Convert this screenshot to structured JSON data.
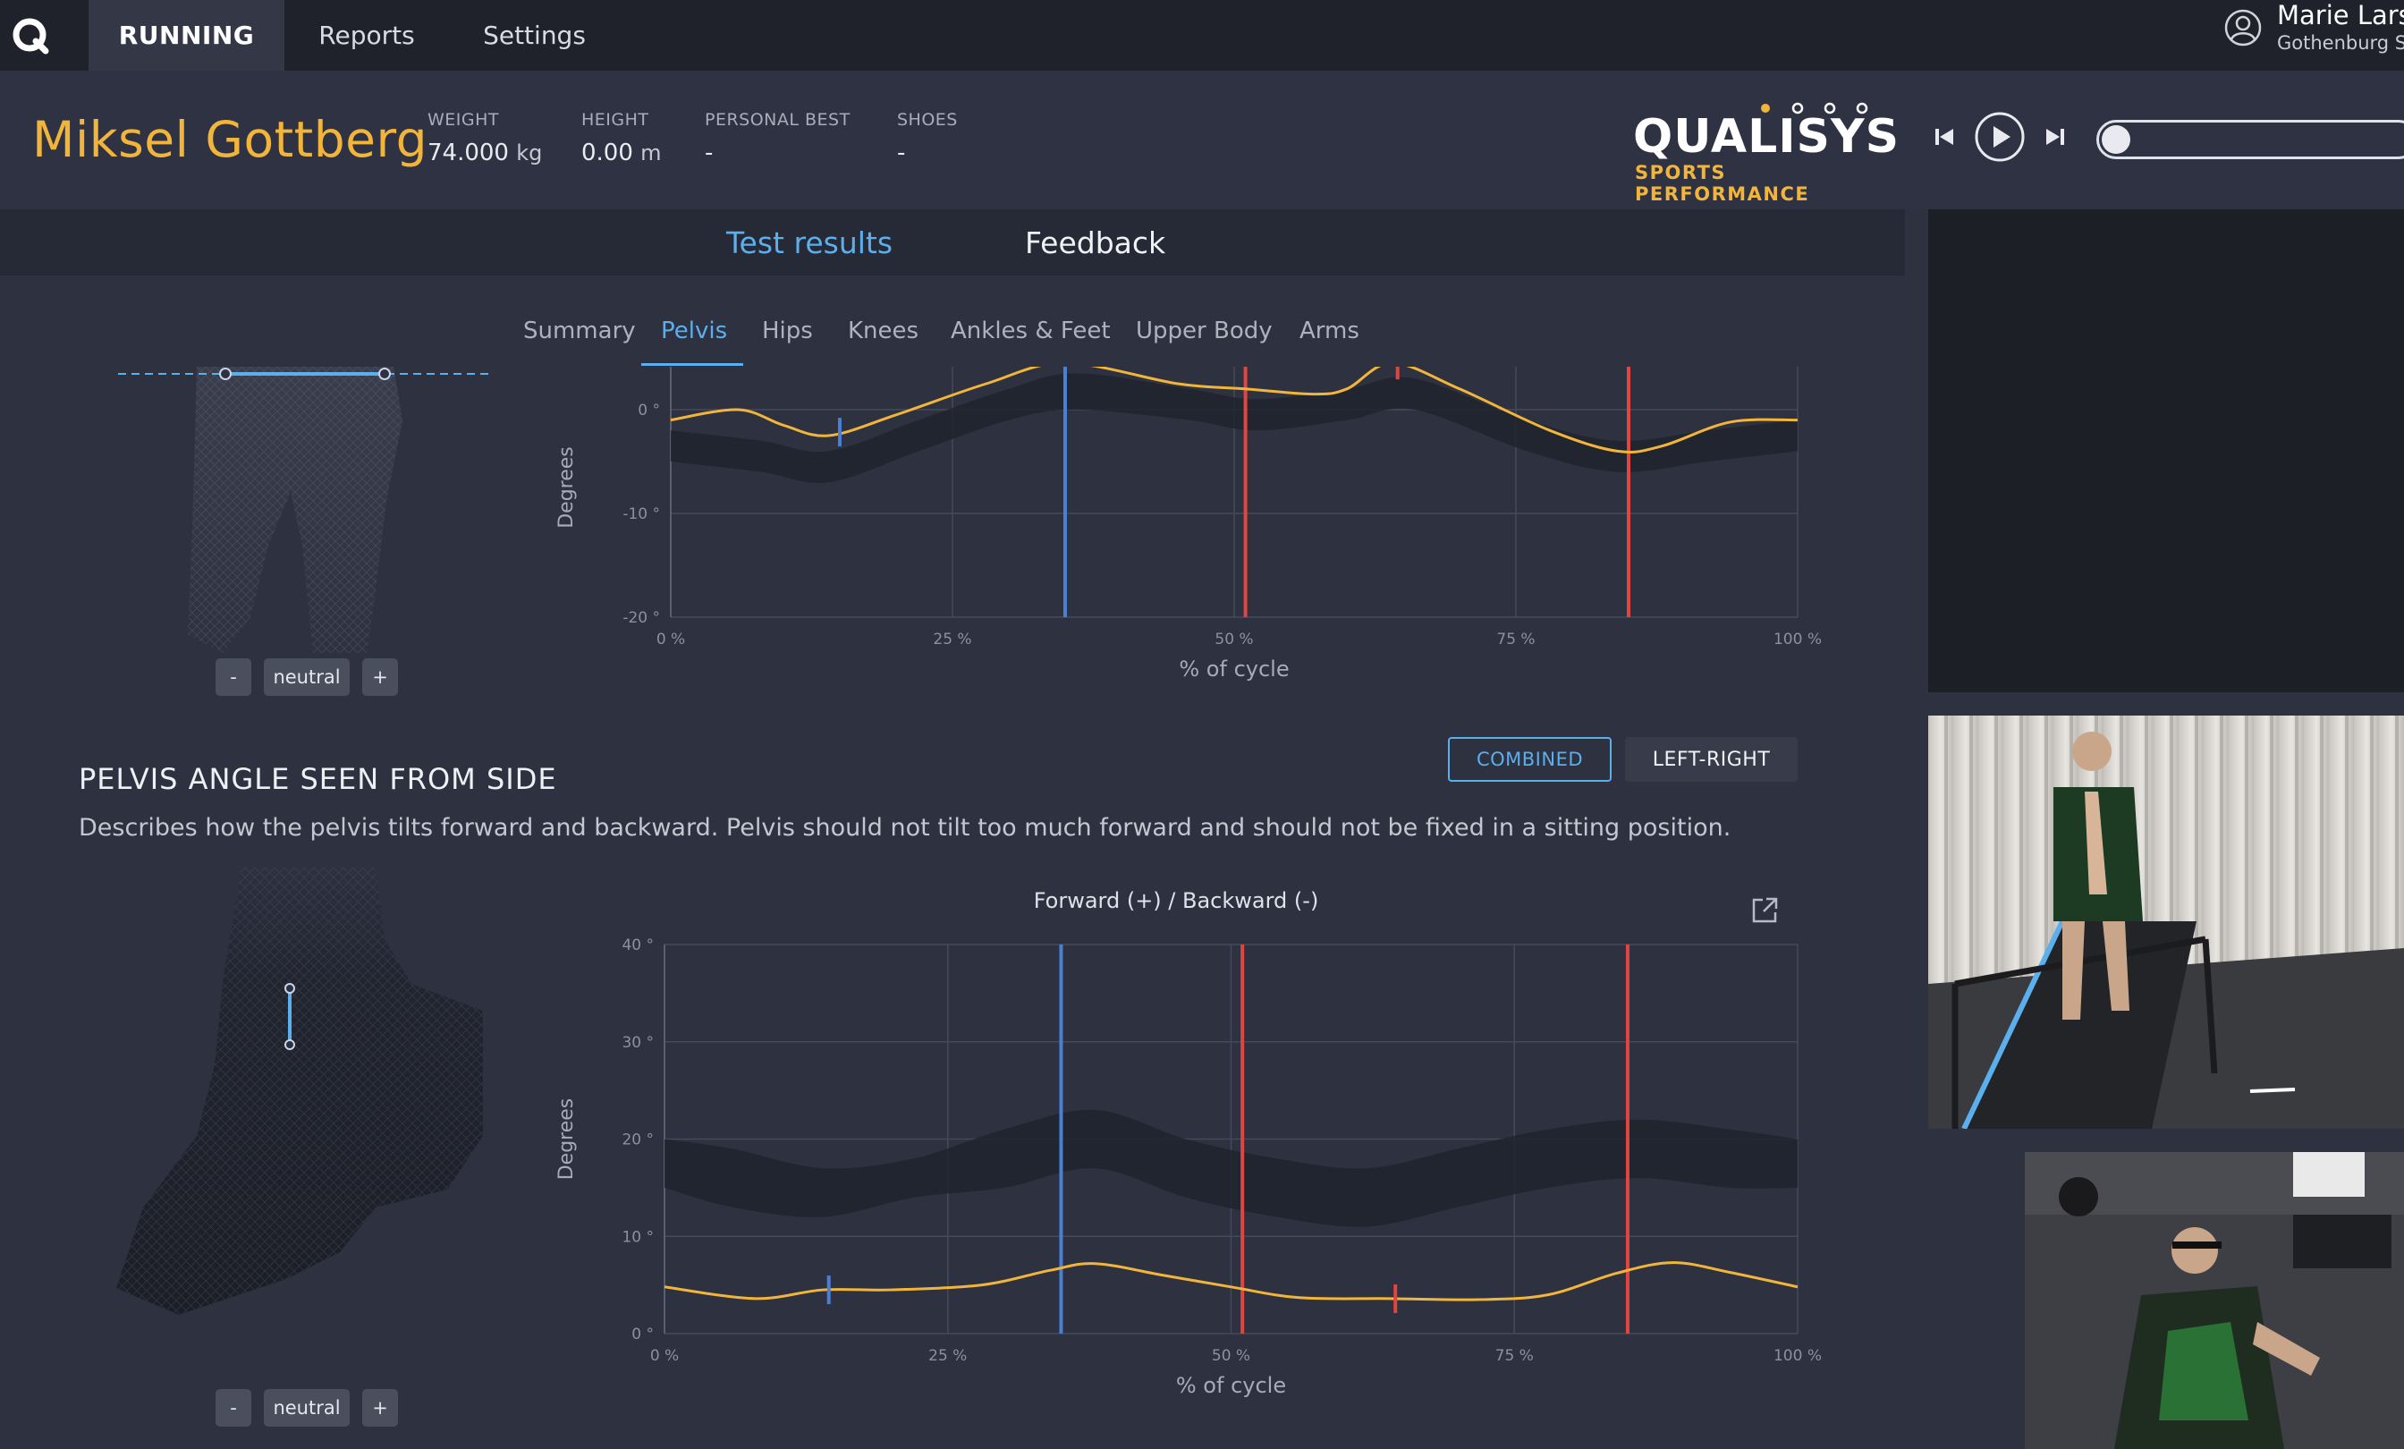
{
  "nav": {
    "logo": "Q",
    "tabs": [
      {
        "label": "RUNNING",
        "active": true
      },
      {
        "label": "Reports"
      },
      {
        "label": "Settings"
      }
    ],
    "user": {
      "name": "Marie Larss",
      "org": "Gothenburg Sp",
      "icon": "user-icon"
    }
  },
  "athlete": {
    "name": "Miksel Gottberg",
    "stats": [
      {
        "label": "WEIGHT",
        "value": "74.000",
        "unit": "kg"
      },
      {
        "label": "HEIGHT",
        "value": "0.00",
        "unit": "m"
      },
      {
        "label": "PERSONAL BEST",
        "value": "-",
        "unit": ""
      },
      {
        "label": "SHOES",
        "value": "-",
        "unit": ""
      }
    ]
  },
  "brand": {
    "word": "QUALISYS",
    "tagline": "SPORTS PERFORMANCE",
    "accent": "#f2b53b"
  },
  "player": {
    "prev_icon": "skip-back-icon",
    "play_icon": "play-icon",
    "next_icon": "skip-forward-icon"
  },
  "main_tabs": [
    {
      "label": "Test results",
      "active": true
    },
    {
      "label": "Feedback"
    }
  ],
  "sub_tabs": [
    {
      "label": "Summary"
    },
    {
      "label": "Pelvis",
      "active": true
    },
    {
      "label": "Hips"
    },
    {
      "label": "Knees"
    },
    {
      "label": "Ankles & Feet"
    },
    {
      "label": "Upper Body"
    },
    {
      "label": "Arms"
    }
  ],
  "model_controls": {
    "minus": "-",
    "neutral": "neutral",
    "plus": "+"
  },
  "section": {
    "title": "PELVIS ANGLE SEEN FROM SIDE",
    "description": "Describes how the pelvis tilts forward and backward. Pelvis should not tilt too much forward and should not be fixed in a sitting position.",
    "toggle": {
      "combined": "COMBINED",
      "left_right": "LEFT-RIGHT",
      "selected": "COMBINED"
    },
    "chart_title": "Forward (+) / Backward (-)"
  },
  "chart_data": [
    {
      "type": "line",
      "title": "",
      "xlabel": "% of cycle",
      "ylabel": "Degrees",
      "xlim": [
        0,
        100
      ],
      "ylim": [
        -20,
        5
      ],
      "xticks": [
        "0 %",
        "25 %",
        "50 %",
        "75 %",
        "100 %"
      ],
      "yticks": [
        {
          "v": 0,
          "label": "0 °"
        },
        {
          "v": -10,
          "label": "-10 °"
        },
        {
          "v": -20,
          "label": "-20 °"
        }
      ],
      "grid": true,
      "series": [
        {
          "color": "#f2b53b",
          "x": [
            0,
            6,
            10,
            14,
            20,
            28,
            35,
            45,
            51,
            57,
            60,
            64,
            70,
            78,
            84,
            88,
            94,
            100
          ],
          "y": [
            -1,
            0,
            -1.5,
            -2.5,
            -0.5,
            2.5,
            4.5,
            2.5,
            2,
            1.5,
            2,
            4.5,
            2,
            -2,
            -4,
            -3.5,
            -1.2,
            -1
          ]
        }
      ],
      "band": {
        "x": [
          0,
          8,
          14,
          22,
          30,
          36,
          46,
          52,
          60,
          66,
          76,
          84,
          92,
          100
        ],
        "lo": [
          -5,
          -6,
          -7,
          -4,
          -1,
          0,
          -1,
          -2,
          -1,
          0,
          -4,
          -6,
          -5,
          -4
        ],
        "hi": [
          -2,
          -3,
          -4,
          -1,
          2,
          3.5,
          2,
          1,
          2,
          3,
          -1,
          -3,
          -2,
          -1
        ]
      },
      "markers": [
        {
          "x": 15,
          "color": "#4a7fd4",
          "kind": "tick"
        },
        {
          "x": 35,
          "color": "#4a7fd4",
          "kind": "line"
        },
        {
          "x": 51,
          "color": "#e0453f",
          "kind": "line"
        },
        {
          "x": 64.5,
          "color": "#e0453f",
          "kind": "tick"
        },
        {
          "x": 85,
          "color": "#e0453f",
          "kind": "line"
        }
      ]
    },
    {
      "type": "line",
      "title": "Forward (+) / Backward (-)",
      "xlabel": "% of cycle",
      "ylabel": "Degrees",
      "xlim": [
        0,
        100
      ],
      "ylim": [
        0,
        40
      ],
      "xticks": [
        "0 %",
        "25 %",
        "50 %",
        "75 %",
        "100 %"
      ],
      "yticks": [
        {
          "v": 40,
          "label": "40 °"
        },
        {
          "v": 30,
          "label": "30 °"
        },
        {
          "v": 20,
          "label": "20 °"
        },
        {
          "v": 10,
          "label": "10 °"
        },
        {
          "v": 0,
          "label": "0 °"
        }
      ],
      "grid": true,
      "series": [
        {
          "color": "#f2b53b",
          "x": [
            0,
            8,
            14,
            20,
            28,
            34,
            38,
            44,
            50,
            56,
            64,
            72,
            78,
            84,
            89,
            94,
            100
          ],
          "y": [
            4.8,
            3.6,
            4.5,
            4.5,
            5,
            6.5,
            7.2,
            6,
            4.8,
            3.7,
            3.6,
            3.5,
            4,
            6.2,
            7.3,
            6.3,
            4.8
          ]
        }
      ],
      "band": {
        "x": [
          0,
          6,
          14,
          22,
          30,
          38,
          46,
          54,
          62,
          70,
          78,
          86,
          94,
          100
        ],
        "lo": [
          15,
          13,
          12,
          14,
          15,
          17,
          14,
          12,
          11,
          13,
          15,
          16,
          15,
          15
        ],
        "hi": [
          20,
          19,
          17,
          18,
          21,
          23,
          20,
          18,
          17,
          19,
          21,
          22,
          21,
          20
        ]
      },
      "markers": [
        {
          "x": 14.5,
          "color": "#4a7fd4",
          "kind": "tick"
        },
        {
          "x": 35,
          "color": "#4a7fd4",
          "kind": "line"
        },
        {
          "x": 51,
          "color": "#e0453f",
          "kind": "line"
        },
        {
          "x": 64.5,
          "color": "#e0453f",
          "kind": "tick"
        },
        {
          "x": 85,
          "color": "#e0453f",
          "kind": "line"
        }
      ]
    }
  ]
}
